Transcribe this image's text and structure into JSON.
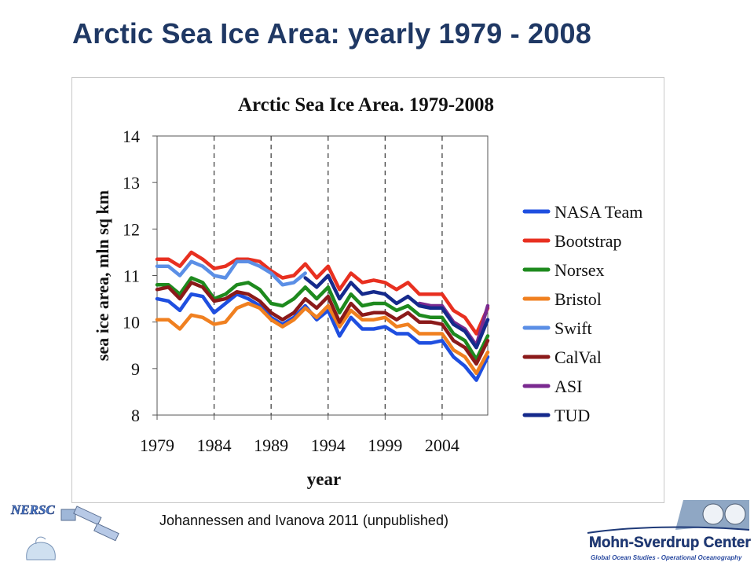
{
  "slide": {
    "title": "Arctic Sea Ice Area: yearly 1979 - 2008",
    "credit": "Johannessen and Ivanova 2011 (unpublished)"
  },
  "logos": {
    "left_text": "NERSC",
    "right_text_main": "Mohn-Sverdrup Center",
    "right_text_sub": "Global Ocean Studies - Operational Oceanography"
  },
  "chart_data": {
    "type": "line",
    "title": "Arctic Sea Ice Area. 1979-2008",
    "xlabel": "year",
    "ylabel": "sea ice area, mln sq km",
    "xlim": [
      1979,
      2008
    ],
    "ylim": [
      8,
      14
    ],
    "x_ticks": [
      1979,
      1984,
      1989,
      1994,
      1999,
      2004
    ],
    "y_ticks": [
      8,
      9,
      10,
      11,
      12,
      13,
      14
    ],
    "grid": "vertical dashed at x ticks",
    "legend_position": "right",
    "series": [
      {
        "name": "NASA Team",
        "color": "#1f4fe0",
        "x": [
          1979,
          1980,
          1981,
          1982,
          1983,
          1984,
          1985,
          1986,
          1987,
          1988,
          1989,
          1990,
          1991,
          1992,
          1993,
          1994,
          1995,
          1996,
          1997,
          1998,
          1999,
          2000,
          2001,
          2002,
          2003,
          2004,
          2005,
          2006,
          2007,
          2008
        ],
        "y": [
          10.5,
          10.45,
          10.25,
          10.6,
          10.55,
          10.2,
          10.4,
          10.6,
          10.5,
          10.35,
          10.1,
          9.95,
          10.1,
          10.35,
          10.05,
          10.25,
          9.7,
          10.1,
          9.85,
          9.85,
          9.9,
          9.75,
          9.75,
          9.55,
          9.55,
          9.6,
          9.25,
          9.05,
          8.75,
          9.25
        ]
      },
      {
        "name": "Bootstrap",
        "color": "#e83020",
        "x": [
          1979,
          1980,
          1981,
          1982,
          1983,
          1984,
          1985,
          1986,
          1987,
          1988,
          1989,
          1990,
          1991,
          1992,
          1993,
          1994,
          1995,
          1996,
          1997,
          1998,
          1999,
          2000,
          2001,
          2002,
          2003,
          2004,
          2005,
          2006,
          2007,
          2008
        ],
        "y": [
          11.35,
          11.35,
          11.2,
          11.5,
          11.35,
          11.15,
          11.2,
          11.35,
          11.35,
          11.3,
          11.1,
          10.95,
          11.0,
          11.25,
          10.95,
          11.2,
          10.7,
          11.05,
          10.85,
          10.9,
          10.85,
          10.7,
          10.85,
          10.6,
          10.6,
          10.6,
          10.25,
          10.1,
          9.75,
          10.3
        ]
      },
      {
        "name": "Norsex",
        "color": "#1e8a1e",
        "x": [
          1979,
          1980,
          1981,
          1982,
          1983,
          1984,
          1985,
          1986,
          1987,
          1988,
          1989,
          1990,
          1991,
          1992,
          1993,
          1994,
          1995,
          1996,
          1997,
          1998,
          1999,
          2000,
          2001,
          2002,
          2003,
          2004,
          2005,
          2006,
          2007,
          2008
        ],
        "y": [
          10.8,
          10.8,
          10.6,
          10.95,
          10.85,
          10.5,
          10.6,
          10.8,
          10.85,
          10.7,
          10.4,
          10.35,
          10.5,
          10.75,
          10.5,
          10.75,
          10.2,
          10.6,
          10.35,
          10.4,
          10.4,
          10.25,
          10.35,
          10.15,
          10.1,
          10.1,
          9.75,
          9.6,
          9.2,
          9.7
        ]
      },
      {
        "name": "Bristol",
        "color": "#f08020",
        "x": [
          1979,
          1980,
          1981,
          1982,
          1983,
          1984,
          1985,
          1986,
          1987,
          1988,
          1989,
          1990,
          1991,
          1992,
          1993,
          1994,
          1995,
          1996,
          1997,
          1998,
          1999,
          2000,
          2001,
          2002,
          2003,
          2004,
          2005,
          2006,
          2007,
          2008
        ],
        "y": [
          10.05,
          10.05,
          9.85,
          10.15,
          10.1,
          9.95,
          10.0,
          10.3,
          10.4,
          10.3,
          10.05,
          9.9,
          10.05,
          10.3,
          10.1,
          10.35,
          9.9,
          10.25,
          10.05,
          10.05,
          10.1,
          9.9,
          9.95,
          9.75,
          9.75,
          9.75,
          9.4,
          9.25,
          8.9,
          9.35
        ]
      },
      {
        "name": "Swift",
        "color": "#5b8fe6",
        "x": [
          1979,
          1980,
          1981,
          1982,
          1983,
          1984,
          1985,
          1986,
          1987,
          1988,
          1989,
          1990,
          1991,
          1992
        ],
        "y": [
          11.2,
          11.2,
          11.0,
          11.3,
          11.2,
          11.0,
          10.95,
          11.3,
          11.3,
          11.2,
          11.05,
          10.8,
          10.85,
          11.05
        ]
      },
      {
        "name": "CalVal",
        "color": "#8b1a1a",
        "x": [
          1979,
          1980,
          1981,
          1982,
          1983,
          1984,
          1985,
          1986,
          1987,
          1988,
          1989,
          1990,
          1991,
          1992,
          1993,
          1994,
          1995,
          1996,
          1997,
          1998,
          1999,
          2000,
          2001,
          2002,
          2003,
          2004,
          2005,
          2006,
          2007,
          2008
        ],
        "y": [
          10.7,
          10.75,
          10.5,
          10.85,
          10.75,
          10.45,
          10.5,
          10.65,
          10.6,
          10.45,
          10.2,
          10.05,
          10.2,
          10.5,
          10.3,
          10.55,
          10.0,
          10.4,
          10.15,
          10.2,
          10.2,
          10.05,
          10.2,
          10.0,
          10.0,
          9.95,
          9.6,
          9.45,
          9.1,
          9.6
        ]
      },
      {
        "name": "ASI",
        "color": "#7a2a90",
        "x": [
          2002,
          2003,
          2004,
          2005,
          2006,
          2007,
          2008
        ],
        "y": [
          10.4,
          10.35,
          10.35,
          10.0,
          9.85,
          9.5,
          10.35
        ]
      },
      {
        "name": "TUD",
        "color": "#152a8c",
        "x": [
          1992,
          1993,
          1994,
          1995,
          1996,
          1997,
          1998,
          1999,
          2000,
          2001,
          2002,
          2003,
          2004,
          2005,
          2006,
          2007,
          2008
        ],
        "y": [
          10.95,
          10.75,
          11.0,
          10.5,
          10.85,
          10.6,
          10.65,
          10.6,
          10.4,
          10.55,
          10.35,
          10.3,
          10.3,
          9.95,
          9.8,
          9.45,
          10.05
        ]
      }
    ]
  }
}
